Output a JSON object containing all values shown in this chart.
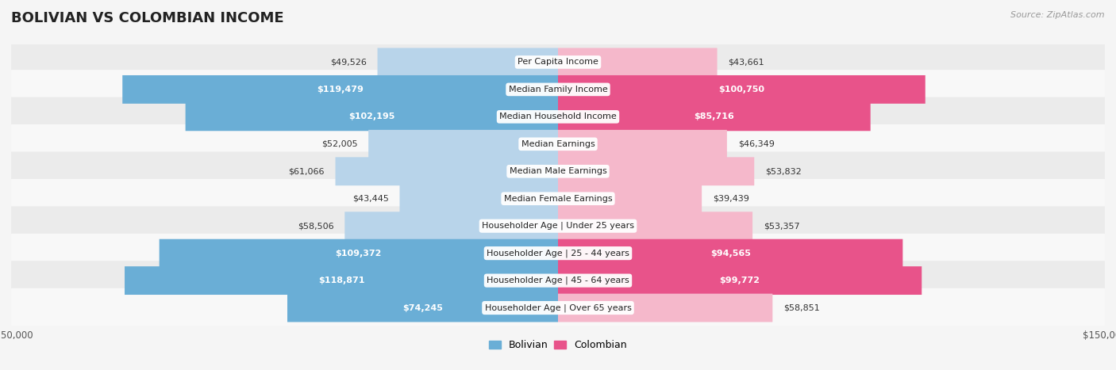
{
  "title": "BOLIVIAN VS COLOMBIAN INCOME",
  "source": "Source: ZipAtlas.com",
  "categories": [
    "Per Capita Income",
    "Median Family Income",
    "Median Household Income",
    "Median Earnings",
    "Median Male Earnings",
    "Median Female Earnings",
    "Householder Age | Under 25 years",
    "Householder Age | 25 - 44 years",
    "Householder Age | 45 - 64 years",
    "Householder Age | Over 65 years"
  ],
  "bolivian_values": [
    49526,
    119479,
    102195,
    52005,
    61066,
    43445,
    58506,
    109372,
    118871,
    74245
  ],
  "colombian_values": [
    43661,
    100750,
    85716,
    46349,
    53832,
    39439,
    53357,
    94565,
    99772,
    58851
  ],
  "bolivian_labels": [
    "$49,526",
    "$119,479",
    "$102,195",
    "$52,005",
    "$61,066",
    "$43,445",
    "$58,506",
    "$109,372",
    "$118,871",
    "$74,245"
  ],
  "colombian_labels": [
    "$43,661",
    "$100,750",
    "$85,716",
    "$46,349",
    "$53,832",
    "$39,439",
    "$53,357",
    "$94,565",
    "$99,772",
    "$58,851"
  ],
  "bolivian_color_light": "#b8d4ea",
  "bolivian_color_dark": "#6aaed6",
  "colombian_color_light": "#f5b8cb",
  "colombian_color_dark": "#e8538a",
  "max_value": 150000,
  "background_color": "#f5f5f5",
  "row_bg_odd": "#ebebeb",
  "row_bg_even": "#f8f8f8",
  "title_fontsize": 13,
  "label_fontsize": 8,
  "cat_fontsize": 8,
  "legend_fontsize": 9,
  "axis_label_fontsize": 8.5,
  "large_threshold": 65000
}
